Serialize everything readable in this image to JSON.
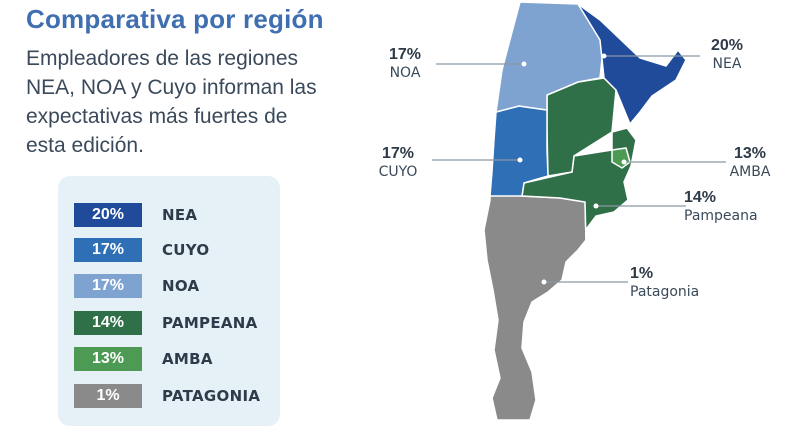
{
  "title": "Comparativa por región",
  "description": "Empleadores de las regiones NEA, NOA y Cuyo informan las expectativas más fuertes de esta edición.",
  "colors": {
    "NEA": "#1f4b9a",
    "CUYO": "#2e6fb5",
    "NOA": "#7ea3d0",
    "PAMPEANA": "#2f7048",
    "AMBA": "#4c9a54",
    "PATAGONIA": "#8a8a8a"
  },
  "legend": [
    {
      "value": "20%",
      "label": "NEA",
      "color": "#1f4b9a"
    },
    {
      "value": "17%",
      "label": "CUYO",
      "color": "#2e6fb5"
    },
    {
      "value": "17%",
      "label": "NOA",
      "color": "#7ea3d0"
    },
    {
      "value": "14%",
      "label": "PAMPEANA",
      "color": "#2f7048"
    },
    {
      "value": "13%",
      "label": "AMBA",
      "color": "#4c9a54"
    },
    {
      "value": "1%",
      "label": "PATAGONIA",
      "color": "#8a8a8a"
    }
  ],
  "callouts": {
    "noa": {
      "pct": "17%",
      "name": "NOA"
    },
    "nea": {
      "pct": "20%",
      "name": "NEA"
    },
    "cuyo": {
      "pct": "17%",
      "name": "CUYO"
    },
    "amba": {
      "pct": "13%",
      "name": "AMBA"
    },
    "pampeana": {
      "pct": "14%",
      "name": "Pampeana"
    },
    "patagonia": {
      "pct": "1%",
      "name": "Patagonia"
    }
  }
}
